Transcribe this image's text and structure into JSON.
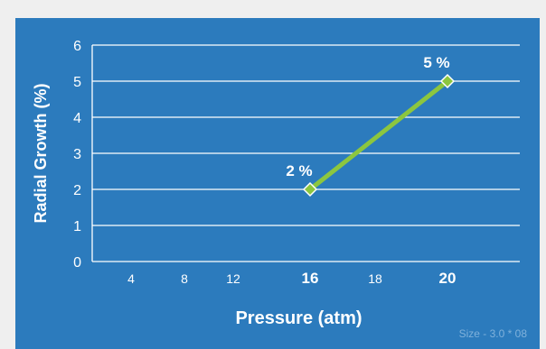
{
  "chart_data": {
    "type": "line",
    "x_ticks": [
      {
        "label": "4",
        "bold": false
      },
      {
        "label": "8",
        "bold": false
      },
      {
        "label": "12",
        "bold": false
      },
      {
        "label": "16",
        "bold": true
      },
      {
        "label": "18",
        "bold": false
      },
      {
        "label": "20",
        "bold": true
      }
    ],
    "y_ticks": [
      0,
      1,
      2,
      3,
      4,
      5,
      6
    ],
    "ylim": [
      0,
      6
    ],
    "xlabel": "Pressure (atm)",
    "ylabel": "Radial Growth (%)",
    "grid": "horizontal",
    "series": [
      {
        "points": [
          {
            "x": "16",
            "y": 2,
            "label": "2 %"
          },
          {
            "x": "20",
            "y": 5,
            "label": "5 %"
          }
        ]
      }
    ]
  },
  "colors": {
    "background": "#2c7bbd",
    "line": "#8cc63f",
    "marker_fill": "#8cc63f",
    "marker_stroke": "#ffffff",
    "text": "#ffffff"
  },
  "footnote": "Size - 3.0 * 08"
}
